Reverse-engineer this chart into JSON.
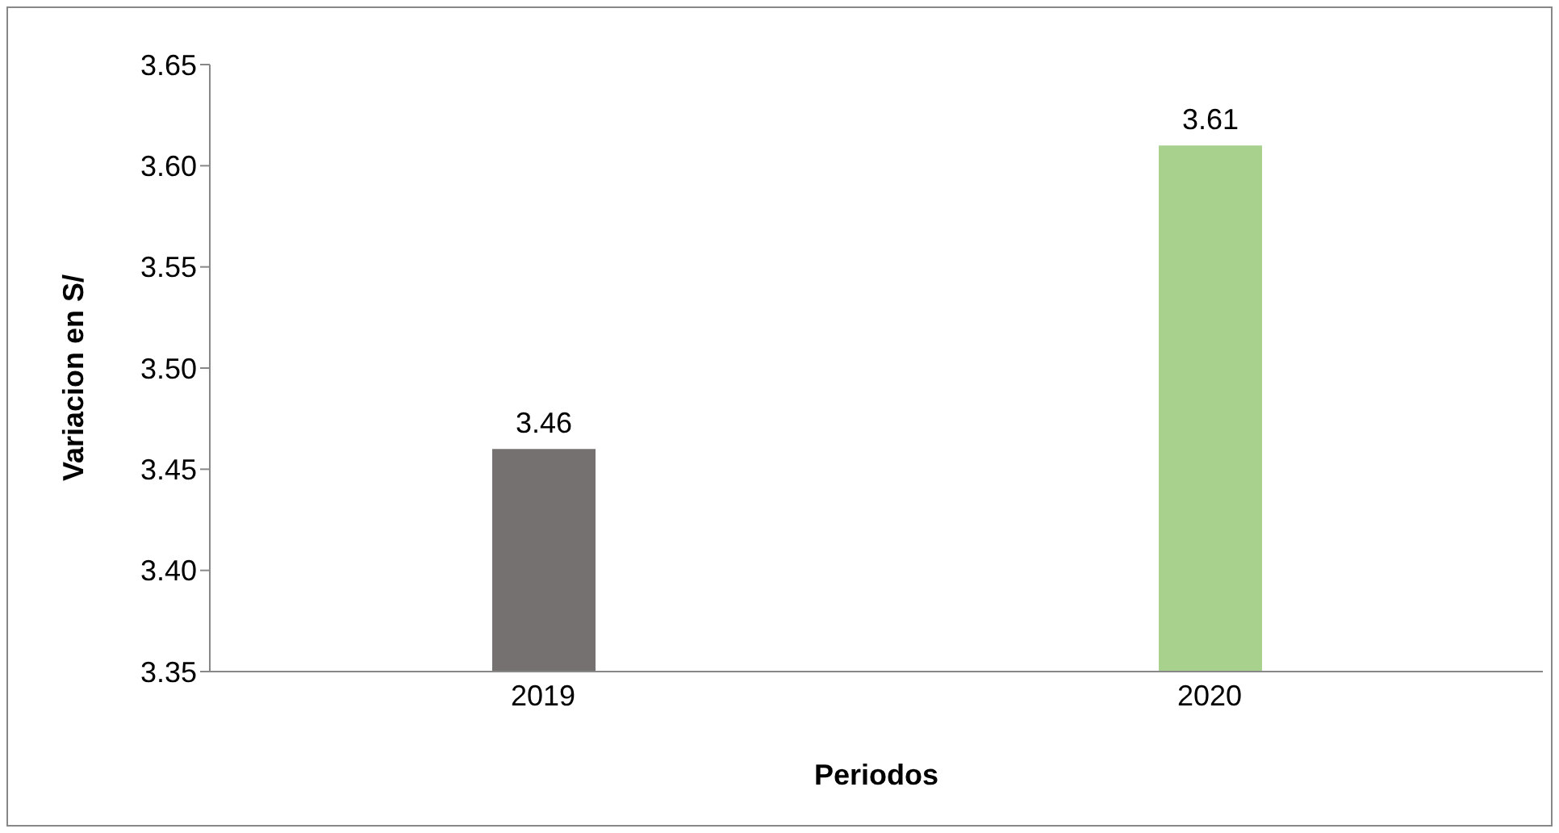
{
  "chart_data": {
    "type": "bar",
    "xlabel": "Periodos",
    "ylabel": "Variacion en S/",
    "categories": [
      "2019",
      "2020"
    ],
    "values": [
      3.46,
      3.61
    ],
    "colors": [
      "#767171",
      "#a9d18e"
    ],
    "ylim": [
      3.35,
      3.65
    ],
    "yticks": [
      {
        "value": 3.35,
        "label": "3.35"
      },
      {
        "value": 3.4,
        "label": "3.40"
      },
      {
        "value": 3.45,
        "label": "3.45"
      },
      {
        "value": 3.5,
        "label": "3.50"
      },
      {
        "value": 3.55,
        "label": "3.55"
      },
      {
        "value": 3.6,
        "label": "3.60"
      },
      {
        "value": 3.65,
        "label": "3.65"
      }
    ],
    "grid": false,
    "data_labels": true
  }
}
